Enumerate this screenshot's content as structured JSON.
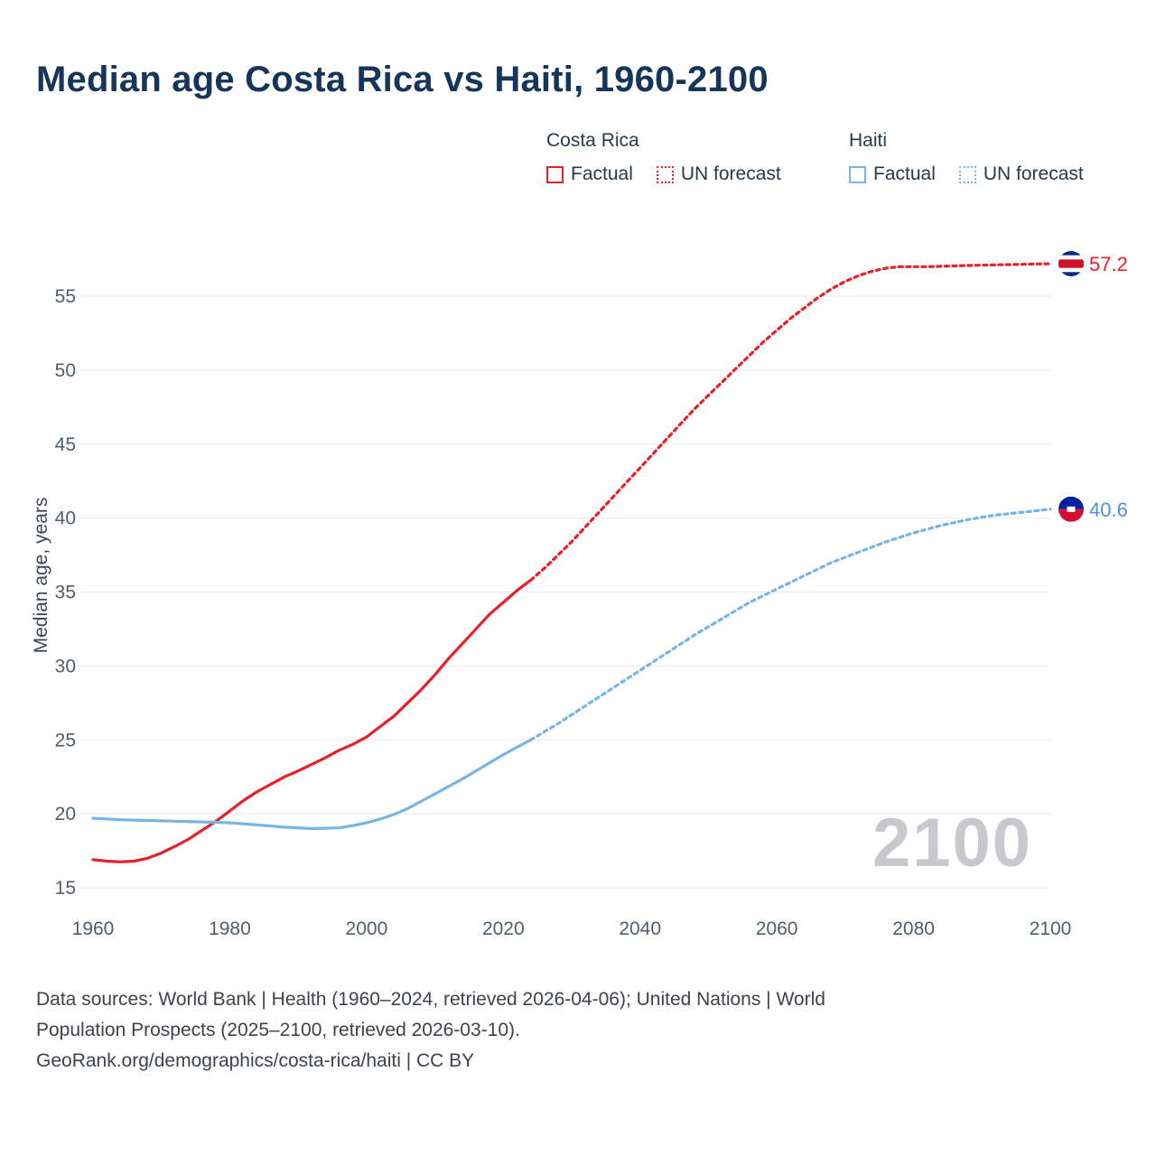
{
  "title": "Median age Costa Rica vs Haiti, 1960-2100",
  "legend": {
    "groups": [
      {
        "name": "Costa Rica",
        "color": "#e8202a",
        "items": [
          {
            "label": "Factual",
            "style": "solid"
          },
          {
            "label": "UN forecast",
            "style": "dotted"
          }
        ]
      },
      {
        "name": "Haiti",
        "color": "#78b5e4",
        "items": [
          {
            "label": "Factual",
            "style": "solid"
          },
          {
            "label": "UN forecast",
            "style": "dotted"
          }
        ]
      }
    ]
  },
  "watermark": "2100",
  "footer": {
    "lines": [
      "Data sources: World Bank | Health (1960–2024, retrieved 2026-04-06); United Nations | World",
      "Population Prospects (2025–2100, retrieved 2026-03-10).",
      "GeoRank.org/demographics/costa-rica/haiti | CC BY"
    ]
  },
  "chart_data": {
    "type": "line",
    "title": "Median age Costa Rica vs Haiti, 1960-2100",
    "xlabel": "",
    "ylabel": "Median age, years",
    "xlim": [
      1960,
      2100
    ],
    "ylim": [
      15,
      55
    ],
    "x_ticks": [
      1960,
      1980,
      2000,
      2020,
      2040,
      2060,
      2080,
      2100
    ],
    "y_ticks": [
      15,
      20,
      25,
      30,
      35,
      40,
      45,
      50,
      55
    ],
    "grid": "horizontal",
    "legend_position": "top-right",
    "series": [
      {
        "name": "Costa Rica Factual",
        "color": "#e8202a",
        "dash": false,
        "points": [
          [
            1960,
            16.9
          ],
          [
            1962,
            16.8
          ],
          [
            1964,
            16.75
          ],
          [
            1966,
            16.8
          ],
          [
            1968,
            17.0
          ],
          [
            1970,
            17.35
          ],
          [
            1972,
            17.8
          ],
          [
            1974,
            18.3
          ],
          [
            1976,
            18.9
          ],
          [
            1978,
            19.5
          ],
          [
            1980,
            20.2
          ],
          [
            1982,
            20.9
          ],
          [
            1984,
            21.5
          ],
          [
            1986,
            22.0
          ],
          [
            1988,
            22.5
          ],
          [
            1990,
            22.9
          ],
          [
            1992,
            23.35
          ],
          [
            1994,
            23.8
          ],
          [
            1996,
            24.3
          ],
          [
            1998,
            24.7
          ],
          [
            2000,
            25.2
          ],
          [
            2002,
            25.9
          ],
          [
            2004,
            26.6
          ],
          [
            2006,
            27.5
          ],
          [
            2008,
            28.4
          ],
          [
            2010,
            29.4
          ],
          [
            2012,
            30.5
          ],
          [
            2014,
            31.5
          ],
          [
            2016,
            32.5
          ],
          [
            2018,
            33.5
          ],
          [
            2020,
            34.3
          ],
          [
            2022,
            35.1
          ],
          [
            2024,
            35.8
          ]
        ]
      },
      {
        "name": "Costa Rica UN forecast",
        "color": "#e8202a",
        "dash": true,
        "points": [
          [
            2024,
            35.8
          ],
          [
            2026,
            36.6
          ],
          [
            2028,
            37.5
          ],
          [
            2030,
            38.4
          ],
          [
            2032,
            39.4
          ],
          [
            2034,
            40.4
          ],
          [
            2036,
            41.4
          ],
          [
            2038,
            42.4
          ],
          [
            2040,
            43.4
          ],
          [
            2042,
            44.4
          ],
          [
            2044,
            45.4
          ],
          [
            2046,
            46.4
          ],
          [
            2048,
            47.4
          ],
          [
            2050,
            48.3
          ],
          [
            2052,
            49.2
          ],
          [
            2054,
            50.1
          ],
          [
            2056,
            51.0
          ],
          [
            2058,
            51.9
          ],
          [
            2060,
            52.7
          ],
          [
            2062,
            53.5
          ],
          [
            2064,
            54.2
          ],
          [
            2066,
            54.9
          ],
          [
            2068,
            55.5
          ],
          [
            2070,
            56.0
          ],
          [
            2072,
            56.4
          ],
          [
            2074,
            56.7
          ],
          [
            2076,
            56.9
          ],
          [
            2078,
            57.0
          ],
          [
            2082,
            57.0
          ],
          [
            2086,
            57.05
          ],
          [
            2090,
            57.1
          ],
          [
            2095,
            57.15
          ],
          [
            2100,
            57.2
          ]
        ]
      },
      {
        "name": "Haiti Factual",
        "color": "#78b5e4",
        "dash": false,
        "points": [
          [
            1960,
            19.7
          ],
          [
            1964,
            19.6
          ],
          [
            1968,
            19.55
          ],
          [
            1972,
            19.5
          ],
          [
            1976,
            19.45
          ],
          [
            1980,
            19.4
          ],
          [
            1984,
            19.25
          ],
          [
            1988,
            19.1
          ],
          [
            1992,
            19.0
          ],
          [
            1996,
            19.05
          ],
          [
            1998,
            19.2
          ],
          [
            2000,
            19.4
          ],
          [
            2002,
            19.65
          ],
          [
            2004,
            19.95
          ],
          [
            2006,
            20.35
          ],
          [
            2008,
            20.85
          ],
          [
            2010,
            21.35
          ],
          [
            2012,
            21.85
          ],
          [
            2014,
            22.35
          ],
          [
            2016,
            22.9
          ],
          [
            2018,
            23.45
          ],
          [
            2020,
            24.0
          ],
          [
            2022,
            24.5
          ],
          [
            2024,
            25.0
          ]
        ]
      },
      {
        "name": "Haiti UN forecast",
        "color": "#78b5e4",
        "dash": true,
        "points": [
          [
            2024,
            25.0
          ],
          [
            2028,
            26.1
          ],
          [
            2032,
            27.3
          ],
          [
            2036,
            28.5
          ],
          [
            2040,
            29.7
          ],
          [
            2044,
            30.9
          ],
          [
            2048,
            32.1
          ],
          [
            2052,
            33.2
          ],
          [
            2056,
            34.3
          ],
          [
            2060,
            35.2
          ],
          [
            2064,
            36.1
          ],
          [
            2068,
            37.0
          ],
          [
            2072,
            37.7
          ],
          [
            2076,
            38.4
          ],
          [
            2080,
            39.0
          ],
          [
            2084,
            39.5
          ],
          [
            2088,
            39.9
          ],
          [
            2092,
            40.2
          ],
          [
            2096,
            40.4
          ],
          [
            2100,
            40.6
          ]
        ]
      }
    ],
    "end_labels": [
      {
        "series": "Costa Rica",
        "value": 57.2,
        "label": "57.2",
        "color": "#e8202a",
        "flag": "costa-rica"
      },
      {
        "series": "Haiti",
        "value": 40.6,
        "label": "40.6",
        "color": "#4a94d8",
        "flag": "haiti"
      }
    ]
  }
}
